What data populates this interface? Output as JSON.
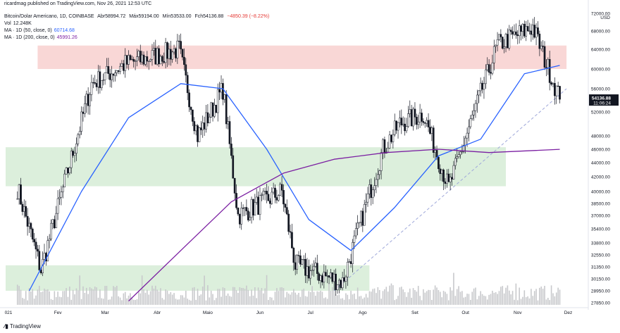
{
  "header": {
    "publish_line": "ricardmag published on TradingView.com, Nov 26, 2021 12:53 UTC",
    "symbol": "Bitcoin/Dolar Americano, 1D, COINBASE",
    "ohlc": {
      "open_label": "Abr",
      "open": "58994.72",
      "high_label": "Máx",
      "high": "59194.00",
      "low_label": "Mín",
      "low": "53533.00",
      "close_label": "Fch",
      "close": "54136.88",
      "change": "−4850.39 (−8.22%)"
    },
    "volume": {
      "label": "Vol",
      "value": "12.248K"
    },
    "ma50": {
      "label": "MA · 1D (50, close, 0)",
      "value": "60714.68"
    },
    "ma200": {
      "label": "MA · 1D (200, close, 0)",
      "value": "45991.26"
    }
  },
  "price_axis": {
    "currency": "USD",
    "ticks": [
      "72000.00",
      "68000.00",
      "64000.00",
      "60000.00",
      "56000.00",
      "52000.00",
      "48000.00",
      "46000.00",
      "44000.00",
      "42000.00",
      "40000.00",
      "38500.00",
      "37000.00",
      "35400.00",
      "33800.00",
      "32550.00",
      "31350.00",
      "30150.00",
      "28950.00",
      "27850.00"
    ],
    "last_price": "54136.88",
    "countdown": "11:06:24"
  },
  "time_axis": {
    "ticks": [
      "021",
      "Fev",
      "Mar",
      "Abr",
      "Maio",
      "Jun",
      "Jul",
      "Ago",
      "Set",
      "Out",
      "Nov",
      "Dez"
    ]
  },
  "brand": "TradingView",
  "colors": {
    "up": "#131722",
    "down": "#131722",
    "ma50": "#2962ff",
    "ma200": "#7b1fa2",
    "resistance_zone": "#f8d0cf",
    "support_zone": "#d6ecd6",
    "trendline": "#9fa8da",
    "volume": "#c8c9cc"
  },
  "chart_data": {
    "type": "candlestick",
    "title": "Bitcoin/Dolar Americano, 1D, COINBASE",
    "ylim": [
      27000,
      72500
    ],
    "y_scale": "log",
    "x_range": [
      "2021-01-01",
      "2021-12-10"
    ],
    "key_points": {
      "x": [
        "2021-01-08",
        "2021-01-22",
        "2021-02-21",
        "2021-03-13",
        "2021-04-14",
        "2021-04-25",
        "2021-05-10",
        "2021-05-19",
        "2021-06-14",
        "2021-06-22",
        "2021-07-20",
        "2021-08-13",
        "2021-08-23",
        "2021-09-06",
        "2021-09-21",
        "2021-10-20",
        "2021-11-10",
        "2021-11-26"
      ],
      "close": [
        40500,
        31000,
        57000,
        61000,
        64000,
        48000,
        56000,
        37000,
        40000,
        31500,
        29800,
        46000,
        50000,
        51700,
        40500,
        65000,
        68900,
        54137
      ]
    },
    "moving_averages": [
      {
        "name": "MA · 1D (50, close, 0)",
        "x": [
          "2021-01-15",
          "2021-02-15",
          "2021-03-15",
          "2021-04-15",
          "2021-05-10",
          "2021-06-05",
          "2021-06-30",
          "2021-07-25",
          "2021-08-20",
          "2021-09-15",
          "2021-10-10",
          "2021-11-05",
          "2021-11-26"
        ],
        "values": [
          28950,
          40000,
          51000,
          57000,
          56000,
          46000,
          36500,
          33000,
          38000,
          45000,
          47500,
          59000,
          60715
        ]
      },
      {
        "name": "MA · 1D (200, close, 0)",
        "x": [
          "2021-03-15",
          "2021-04-15",
          "2021-05-15",
          "2021-06-15",
          "2021-07-15",
          "2021-08-15",
          "2021-09-15",
          "2021-10-15",
          "2021-11-26"
        ],
        "values": [
          28000,
          33000,
          38700,
          42500,
          44500,
          45500,
          46000,
          45500,
          45991
        ]
      }
    ],
    "zones": [
      {
        "name": "resistance",
        "from": 60000,
        "to": 64800,
        "x_start": "2021-01-20",
        "x_end": "2021-11-30"
      },
      {
        "name": "support",
        "from": 40700,
        "to": 46300,
        "x_start": "2021-01-01",
        "x_end": "2021-10-25"
      },
      {
        "name": "support-low",
        "from": 28950,
        "to": 31500,
        "x_start": "2021-01-01",
        "x_end": "2021-08-05"
      }
    ],
    "trendline": {
      "from": [
        "2021-07-15",
        28950
      ],
      "to": [
        "2021-11-30",
        56000
      ]
    }
  }
}
